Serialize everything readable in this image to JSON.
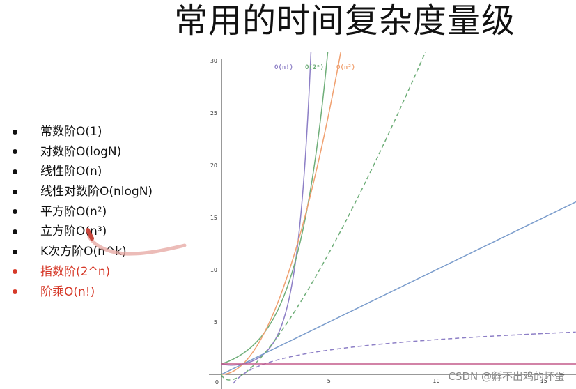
{
  "title": "常用的时间复杂度量级",
  "bullets": [
    {
      "text": "常数阶O(1)",
      "color": "#111111"
    },
    {
      "text": "对数阶O(logN)",
      "color": "#111111"
    },
    {
      "text": "线性阶O(n)",
      "color": "#111111"
    },
    {
      "text": "线性对数阶O(nlogN)",
      "color": "#111111"
    },
    {
      "text": "平方阶O(n²)",
      "color": "#111111"
    },
    {
      "text": "立方阶O(n³)",
      "color": "#111111"
    },
    {
      "text": "K次方阶O(n^k)",
      "color": "#111111"
    },
    {
      "text": "指数阶(2^n)",
      "color": "#d63a2a"
    },
    {
      "text": "阶乘O(n!)",
      "color": "#d63a2a"
    }
  ],
  "chart_data": {
    "type": "line",
    "xlim": [
      0,
      16.5
    ],
    "ylim": [
      0,
      30
    ],
    "x_ticks": [
      "5",
      "10",
      "15"
    ],
    "x_tick_values": [
      5,
      10,
      15
    ],
    "y_ticks": [
      "5",
      "10",
      "15",
      "20",
      "25",
      "30"
    ],
    "y_tick_values": [
      5,
      10,
      15,
      20,
      25,
      30
    ],
    "series": [
      {
        "name": "O(n!)",
        "color": "#8d7fc6",
        "dash": false
      },
      {
        "name": "O(2ⁿ)",
        "color": "#6fae79",
        "dash": false
      },
      {
        "name": "O(n²)",
        "color": "#f0a070",
        "dash": false
      },
      {
        "name": "",
        "color": "#7a9ccc",
        "dash": false
      },
      {
        "name": "",
        "color": "#6fae79",
        "dash": true
      },
      {
        "name": "",
        "color": "#8d7fc6",
        "dash": true
      },
      {
        "name": "",
        "color": "#c45a8a",
        "dash": false
      }
    ],
    "labels": [
      "O(n!)",
      "O(2ⁿ)",
      "O(n²)"
    ],
    "grid": false
  },
  "watermark": "CSDN @孵不出鸡的坏蛋"
}
